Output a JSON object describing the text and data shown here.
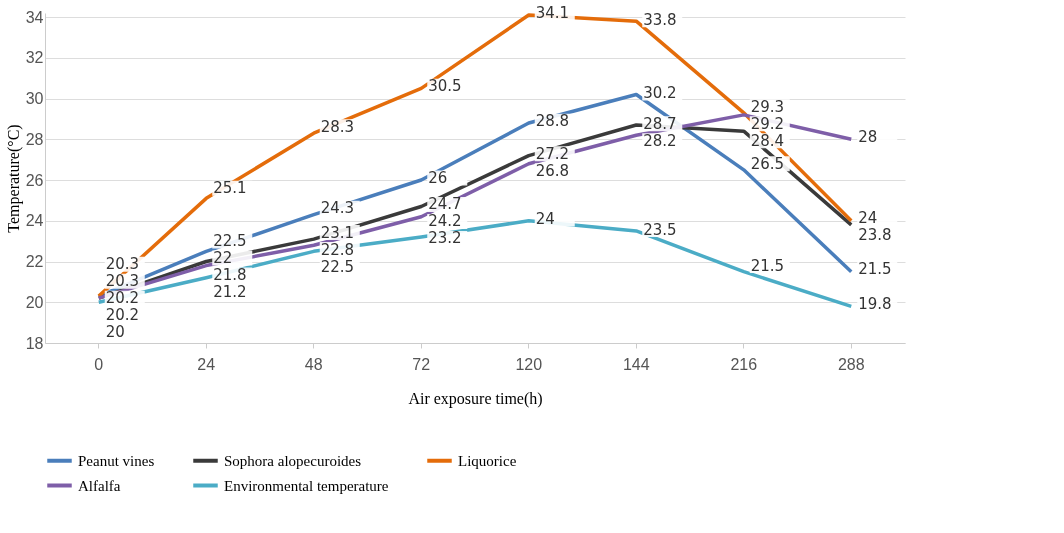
{
  "chart_data": {
    "type": "line",
    "xlabel": "Air exposure time(h)",
    "ylabel": "Temperature(°C)",
    "categories": [
      "0",
      "24",
      "48",
      "72",
      "120",
      "144",
      "216",
      "288"
    ],
    "series": [
      {
        "name": "Peanut vines",
        "color": "#4a7ebb",
        "values": [
          20.3,
          22.5,
          24.3,
          26,
          28.8,
          30.2,
          26.5,
          21.5
        ]
      },
      {
        "name": "Sophora alopecuroides",
        "color": "#3a3a3a",
        "values": [
          20.2,
          22,
          23.1,
          24.7,
          27.2,
          28.7,
          28.4,
          23.8
        ]
      },
      {
        "name": "Liquorice",
        "color": "#e46c0a",
        "values": [
          20.3,
          25.1,
          28.3,
          30.5,
          34.1,
          33.8,
          29.3,
          24
        ]
      },
      {
        "name": "Alfalfa",
        "color": "#7e5ea8",
        "values": [
          20.2,
          21.8,
          22.8,
          24.2,
          26.8,
          28.2,
          29.2,
          28
        ]
      },
      {
        "name": "Environmental temperature",
        "color": "#4bacc6",
        "values": [
          20,
          21.2,
          22.5,
          23.2,
          24,
          23.5,
          21.5,
          19.8
        ]
      }
    ],
    "ylim": [
      18,
      34.2
    ],
    "yticks": [
      18,
      20,
      22,
      24,
      26,
      28,
      30,
      32,
      34
    ],
    "grid": "y",
    "legend": "bottom",
    "data_labels": true,
    "marker": "none",
    "line_style": "solid"
  }
}
